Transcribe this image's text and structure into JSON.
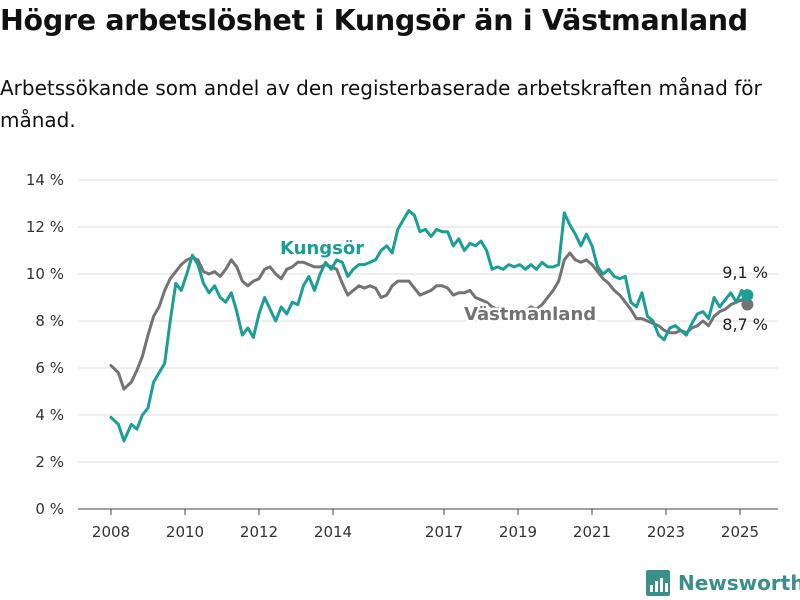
{
  "header": {
    "title": "Högre arbetslöshet i Kungsör än i Västmanland",
    "subtitle": "Arbetssökande som andel av den registerbaserade arbetskraften månad för månad."
  },
  "brand": {
    "name": "Newsworthy",
    "icon": "newsworthy-chart-logo-icon"
  },
  "colors": {
    "kungsor": "#1a9e96",
    "vastmanland": "#737373",
    "grid": "#dddddd",
    "text": "#333333"
  },
  "chart_data": {
    "type": "line",
    "title": "Högre arbetslöshet i Kungsör än i Västmanland",
    "subtitle": "Arbetssökande som andel av den registerbaserade arbetskraften månad för månad.",
    "x_tick_labels": [
      "2008",
      "2010",
      "2012",
      "2014",
      "2017",
      "2019",
      "2021",
      "2023",
      "2025"
    ],
    "x_tick_values": [
      2008,
      2010,
      2012,
      2014,
      2017,
      2019,
      2021,
      2023,
      2025
    ],
    "y_tick_labels": [
      "0 %",
      "2 %",
      "4 %",
      "6 %",
      "8 %",
      "10 %",
      "12 %",
      "14 %"
    ],
    "ylim": [
      0,
      14
    ],
    "grid": true,
    "legend": "inline labels",
    "series": [
      {
        "name": "Kungsör",
        "points": [
          [
            2008.0,
            3.9
          ],
          [
            2008.2,
            3.6
          ],
          [
            2008.35,
            2.9
          ],
          [
            2008.55,
            3.6
          ],
          [
            2008.7,
            3.4
          ],
          [
            2008.85,
            4.0
          ],
          [
            2009.0,
            4.3
          ],
          [
            2009.15,
            5.4
          ],
          [
            2009.3,
            5.8
          ],
          [
            2009.45,
            6.2
          ],
          [
            2009.6,
            8.0
          ],
          [
            2009.75,
            9.6
          ],
          [
            2009.9,
            9.3
          ],
          [
            2010.05,
            10.0
          ],
          [
            2010.2,
            10.8
          ],
          [
            2010.35,
            10.4
          ],
          [
            2010.5,
            9.6
          ],
          [
            2010.65,
            9.2
          ],
          [
            2010.8,
            9.5
          ],
          [
            2010.95,
            9.0
          ],
          [
            2011.1,
            8.8
          ],
          [
            2011.25,
            9.2
          ],
          [
            2011.4,
            8.4
          ],
          [
            2011.55,
            7.4
          ],
          [
            2011.7,
            7.7
          ],
          [
            2011.85,
            7.3
          ],
          [
            2012.0,
            8.3
          ],
          [
            2012.15,
            9.0
          ],
          [
            2012.3,
            8.5
          ],
          [
            2012.45,
            8.0
          ],
          [
            2012.6,
            8.6
          ],
          [
            2012.75,
            8.3
          ],
          [
            2012.9,
            8.8
          ],
          [
            2013.05,
            8.7
          ],
          [
            2013.2,
            9.5
          ],
          [
            2013.35,
            9.9
          ],
          [
            2013.5,
            9.3
          ],
          [
            2013.65,
            10.0
          ],
          [
            2013.8,
            10.5
          ],
          [
            2013.95,
            10.2
          ],
          [
            2014.1,
            10.6
          ],
          [
            2014.25,
            10.5
          ],
          [
            2014.4,
            9.9
          ],
          [
            2014.55,
            10.2
          ],
          [
            2014.7,
            10.4
          ],
          [
            2014.85,
            10.4
          ],
          [
            2015.0,
            10.5
          ],
          [
            2015.15,
            10.6
          ],
          [
            2015.3,
            11.0
          ],
          [
            2015.45,
            11.2
          ],
          [
            2015.6,
            10.9
          ],
          [
            2015.75,
            11.9
          ],
          [
            2015.9,
            12.3
          ],
          [
            2016.05,
            12.7
          ],
          [
            2016.2,
            12.5
          ],
          [
            2016.35,
            11.8
          ],
          [
            2016.5,
            11.9
          ],
          [
            2016.65,
            11.6
          ],
          [
            2016.8,
            11.9
          ],
          [
            2016.95,
            11.8
          ],
          [
            2017.1,
            11.8
          ],
          [
            2017.25,
            11.2
          ],
          [
            2017.4,
            11.5
          ],
          [
            2017.55,
            11.0
          ],
          [
            2017.7,
            11.3
          ],
          [
            2017.85,
            11.2
          ],
          [
            2018.0,
            11.4
          ],
          [
            2018.15,
            11.0
          ],
          [
            2018.3,
            10.2
          ],
          [
            2018.45,
            10.3
          ],
          [
            2018.6,
            10.2
          ],
          [
            2018.75,
            10.4
          ],
          [
            2018.9,
            10.3
          ],
          [
            2019.05,
            10.4
          ],
          [
            2019.2,
            10.2
          ],
          [
            2019.35,
            10.4
          ],
          [
            2019.5,
            10.2
          ],
          [
            2019.65,
            10.5
          ],
          [
            2019.8,
            10.3
          ],
          [
            2019.95,
            10.3
          ],
          [
            2020.1,
            10.4
          ],
          [
            2020.25,
            12.6
          ],
          [
            2020.4,
            12.1
          ],
          [
            2020.55,
            11.7
          ],
          [
            2020.7,
            11.2
          ],
          [
            2020.85,
            11.7
          ],
          [
            2021.0,
            11.2
          ],
          [
            2021.15,
            10.3
          ],
          [
            2021.3,
            10.0
          ],
          [
            2021.45,
            10.2
          ],
          [
            2021.6,
            9.9
          ],
          [
            2021.75,
            9.8
          ],
          [
            2021.9,
            9.9
          ],
          [
            2022.05,
            8.8
          ],
          [
            2022.2,
            8.6
          ],
          [
            2022.35,
            9.2
          ],
          [
            2022.5,
            8.2
          ],
          [
            2022.65,
            8.0
          ],
          [
            2022.8,
            7.4
          ],
          [
            2022.95,
            7.2
          ],
          [
            2023.1,
            7.7
          ],
          [
            2023.25,
            7.8
          ],
          [
            2023.4,
            7.6
          ],
          [
            2023.55,
            7.4
          ],
          [
            2023.7,
            7.9
          ],
          [
            2023.85,
            8.3
          ],
          [
            2024.0,
            8.4
          ],
          [
            2024.15,
            8.1
          ],
          [
            2024.3,
            9.0
          ],
          [
            2024.45,
            8.6
          ],
          [
            2024.6,
            8.9
          ],
          [
            2024.75,
            9.2
          ],
          [
            2024.9,
            8.8
          ],
          [
            2025.05,
            9.3
          ],
          [
            2025.2,
            9.1
          ]
        ],
        "end_label": "9,1 %"
      },
      {
        "name": "Västmanland",
        "points": [
          [
            2008.0,
            6.1
          ],
          [
            2008.2,
            5.8
          ],
          [
            2008.35,
            5.1
          ],
          [
            2008.55,
            5.4
          ],
          [
            2008.7,
            5.9
          ],
          [
            2008.85,
            6.5
          ],
          [
            2009.0,
            7.4
          ],
          [
            2009.15,
            8.2
          ],
          [
            2009.3,
            8.6
          ],
          [
            2009.45,
            9.3
          ],
          [
            2009.6,
            9.8
          ],
          [
            2009.75,
            10.1
          ],
          [
            2009.9,
            10.4
          ],
          [
            2010.05,
            10.6
          ],
          [
            2010.2,
            10.7
          ],
          [
            2010.35,
            10.6
          ],
          [
            2010.5,
            10.1
          ],
          [
            2010.65,
            10.0
          ],
          [
            2010.8,
            10.1
          ],
          [
            2010.95,
            9.9
          ],
          [
            2011.1,
            10.2
          ],
          [
            2011.25,
            10.6
          ],
          [
            2011.4,
            10.3
          ],
          [
            2011.55,
            9.7
          ],
          [
            2011.7,
            9.5
          ],
          [
            2011.85,
            9.7
          ],
          [
            2012.0,
            9.8
          ],
          [
            2012.15,
            10.2
          ],
          [
            2012.3,
            10.3
          ],
          [
            2012.45,
            10.0
          ],
          [
            2012.6,
            9.8
          ],
          [
            2012.75,
            10.2
          ],
          [
            2012.9,
            10.3
          ],
          [
            2013.05,
            10.5
          ],
          [
            2013.2,
            10.5
          ],
          [
            2013.35,
            10.4
          ],
          [
            2013.5,
            10.3
          ],
          [
            2013.65,
            10.3
          ],
          [
            2013.8,
            10.4
          ],
          [
            2013.95,
            10.3
          ],
          [
            2014.1,
            10.2
          ],
          [
            2014.25,
            9.6
          ],
          [
            2014.4,
            9.1
          ],
          [
            2014.55,
            9.3
          ],
          [
            2014.7,
            9.5
          ],
          [
            2014.85,
            9.4
          ],
          [
            2015.0,
            9.5
          ],
          [
            2015.15,
            9.4
          ],
          [
            2015.3,
            9.0
          ],
          [
            2015.45,
            9.1
          ],
          [
            2015.6,
            9.5
          ],
          [
            2015.75,
            9.7
          ],
          [
            2015.9,
            9.7
          ],
          [
            2016.05,
            9.7
          ],
          [
            2016.2,
            9.4
          ],
          [
            2016.35,
            9.1
          ],
          [
            2016.5,
            9.2
          ],
          [
            2016.65,
            9.3
          ],
          [
            2016.8,
            9.5
          ],
          [
            2016.95,
            9.5
          ],
          [
            2017.1,
            9.4
          ],
          [
            2017.25,
            9.1
          ],
          [
            2017.4,
            9.2
          ],
          [
            2017.55,
            9.2
          ],
          [
            2017.7,
            9.3
          ],
          [
            2017.85,
            9.0
          ],
          [
            2018.0,
            8.9
          ],
          [
            2018.15,
            8.8
          ],
          [
            2018.3,
            8.6
          ],
          [
            2018.45,
            8.5
          ],
          [
            2018.6,
            8.6
          ],
          [
            2018.75,
            8.4
          ],
          [
            2018.9,
            8.5
          ],
          [
            2019.05,
            8.3
          ],
          [
            2019.2,
            8.4
          ],
          [
            2019.35,
            8.6
          ],
          [
            2019.5,
            8.5
          ],
          [
            2019.65,
            8.7
          ],
          [
            2019.8,
            9.0
          ],
          [
            2019.95,
            9.3
          ],
          [
            2020.1,
            9.7
          ],
          [
            2020.25,
            10.6
          ],
          [
            2020.4,
            10.9
          ],
          [
            2020.55,
            10.6
          ],
          [
            2020.7,
            10.5
          ],
          [
            2020.85,
            10.6
          ],
          [
            2021.0,
            10.4
          ],
          [
            2021.15,
            10.1
          ],
          [
            2021.3,
            9.8
          ],
          [
            2021.45,
            9.6
          ],
          [
            2021.6,
            9.3
          ],
          [
            2021.75,
            9.1
          ],
          [
            2021.9,
            8.8
          ],
          [
            2022.05,
            8.5
          ],
          [
            2022.2,
            8.1
          ],
          [
            2022.35,
            8.1
          ],
          [
            2022.5,
            8.0
          ],
          [
            2022.65,
            7.9
          ],
          [
            2022.8,
            7.8
          ],
          [
            2022.95,
            7.6
          ],
          [
            2023.1,
            7.5
          ],
          [
            2023.25,
            7.5
          ],
          [
            2023.4,
            7.6
          ],
          [
            2023.55,
            7.5
          ],
          [
            2023.7,
            7.7
          ],
          [
            2023.85,
            7.8
          ],
          [
            2024.0,
            8.0
          ],
          [
            2024.15,
            7.8
          ],
          [
            2024.3,
            8.2
          ],
          [
            2024.45,
            8.4
          ],
          [
            2024.6,
            8.5
          ],
          [
            2024.75,
            8.7
          ],
          [
            2024.9,
            8.8
          ],
          [
            2025.05,
            8.9
          ],
          [
            2025.2,
            8.7
          ]
        ],
        "end_label": "8,7 %"
      }
    ]
  }
}
